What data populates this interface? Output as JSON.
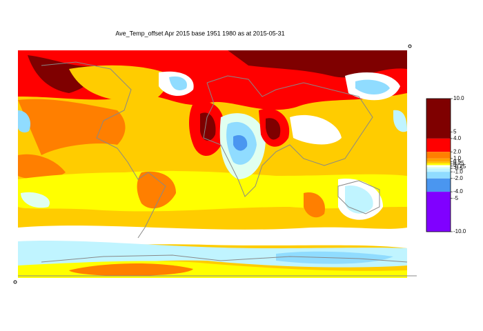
{
  "title": "Ave_Temp_offset Apr 2015  base 1951 1980  as at  2015-05-31",
  "legend": {
    "lim": [
      -10,
      10
    ],
    "levels": [
      {
        "from": 4,
        "to": 10,
        "color": "#7f0000"
      },
      {
        "from": 2,
        "to": 4,
        "color": "#ff0000"
      },
      {
        "from": 1,
        "to": 2,
        "color": "#ff7f00"
      },
      {
        "from": 0.5,
        "to": 1,
        "color": "#ffa500"
      },
      {
        "from": 0.25,
        "to": 0.5,
        "color": "#ffcc00"
      },
      {
        "from": 0,
        "to": 0.25,
        "color": "#ffff00"
      },
      {
        "from": -0.25,
        "to": 0,
        "color": "#ffffff"
      },
      {
        "from": -0.5,
        "to": -0.25,
        "color": "#e0fff0"
      },
      {
        "from": -1,
        "to": -0.5,
        "color": "#c0f4ff"
      },
      {
        "from": -2,
        "to": -1,
        "color": "#90dcff"
      },
      {
        "from": -4,
        "to": -2,
        "color": "#4a96f0"
      },
      {
        "from": -10,
        "to": -4,
        "color": "#8000ff"
      }
    ],
    "ticks": [
      {
        "value": 10,
        "label": "10.0"
      },
      5,
      {
        "value": 4,
        "label": "4.0"
      },
      {
        "value": 2,
        "label": "2.0"
      },
      {
        "value": 1,
        "label": "1.0"
      },
      0.5,
      0.25,
      0,
      -0.25,
      -0.5,
      {
        "value": -1,
        "label": "-1.0"
      },
      {
        "value": -2,
        "label": "-2.0"
      },
      {
        "value": -4,
        "label": "-4.0"
      },
      -5,
      {
        "value": -10,
        "label": "-10.0"
      }
    ]
  }
}
